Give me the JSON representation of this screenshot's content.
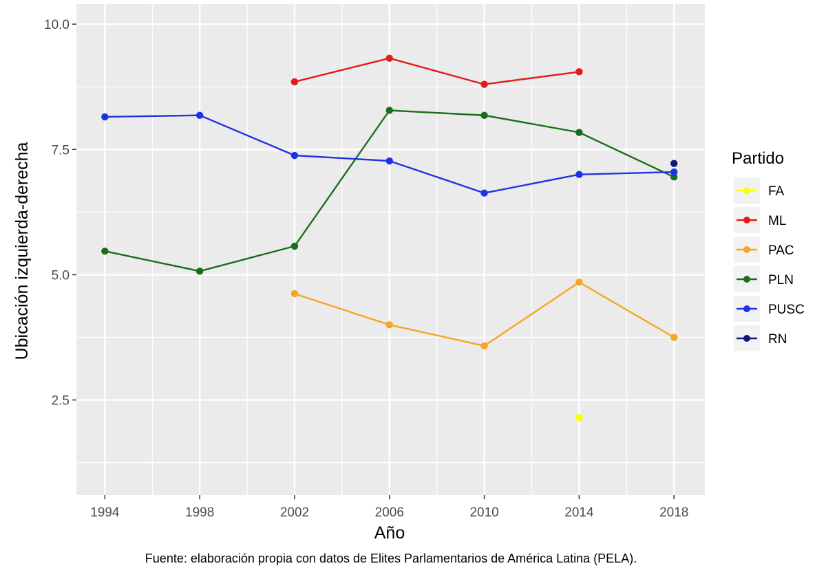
{
  "chart_data": {
    "type": "line",
    "xlabel": "Año",
    "ylabel": "Ubicación izquierda-derecha",
    "caption": "Fuente: elaboración propia con datos de Elites Parlamentarios de América Latina (PELA).",
    "x_ticks": [
      "1994",
      "1998",
      "2002",
      "2006",
      "2010",
      "2014",
      "2018"
    ],
    "y_ticks": [
      "2.5",
      "5.0",
      "7.5",
      "10.0"
    ],
    "xlim": [
      1992.8,
      2019.3
    ],
    "ylim": [
      0.6,
      10.4
    ],
    "grid": true,
    "legend": {
      "title": "Partido",
      "position": "right"
    },
    "series": [
      {
        "name": "FA",
        "color": "#FFFF00",
        "points": [
          [
            2014,
            2.15
          ]
        ]
      },
      {
        "name": "ML",
        "color": "#E41A1C",
        "points": [
          [
            2002,
            8.85
          ],
          [
            2006,
            9.32
          ],
          [
            2010,
            8.8
          ],
          [
            2014,
            9.05
          ]
        ]
      },
      {
        "name": "PAC",
        "color": "#F5A623",
        "points": [
          [
            2002,
            4.62
          ],
          [
            2006,
            4.0
          ],
          [
            2010,
            3.58
          ],
          [
            2014,
            4.85
          ],
          [
            2018,
            3.75
          ]
        ]
      },
      {
        "name": "PLN",
        "color": "#1A6E1A",
        "points": [
          [
            1994,
            5.47
          ],
          [
            1998,
            5.07
          ],
          [
            2002,
            5.57
          ],
          [
            2006,
            8.28
          ],
          [
            2010,
            8.18
          ],
          [
            2014,
            7.84
          ],
          [
            2018,
            6.95
          ]
        ]
      },
      {
        "name": "PUSC",
        "color": "#1F33E6",
        "points": [
          [
            1994,
            8.15
          ],
          [
            1998,
            8.18
          ],
          [
            2002,
            7.38
          ],
          [
            2006,
            7.27
          ],
          [
            2010,
            6.63
          ],
          [
            2014,
            7.0
          ],
          [
            2018,
            7.05
          ]
        ]
      },
      {
        "name": "RN",
        "color": "#0A1A7A",
        "points": [
          [
            2018,
            7.22
          ]
        ]
      }
    ]
  }
}
